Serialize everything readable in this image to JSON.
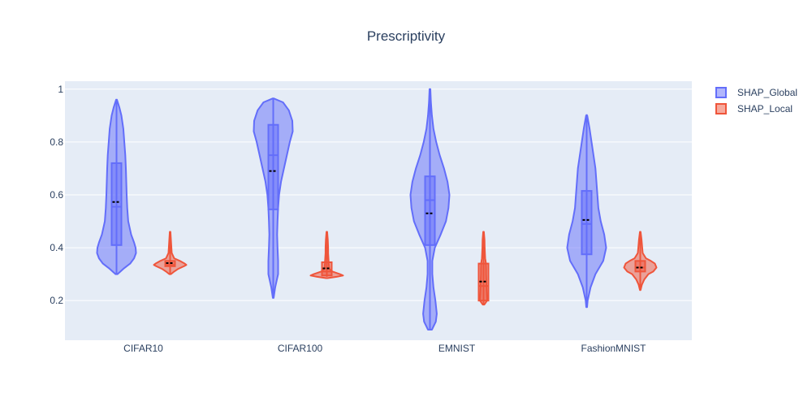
{
  "chart_data": {
    "type": "violin",
    "title": "Prescriptivity",
    "xlabel": "",
    "ylabel": "",
    "ylim": [
      0.05,
      1.03
    ],
    "yticks": [
      "0.2",
      "0.4",
      "0.6",
      "0.8",
      "1"
    ],
    "categories": [
      "CIFAR10",
      "CIFAR100",
      "EMNIST",
      "FashionMNIST"
    ],
    "legend_position": "top-right",
    "grid": true,
    "series": [
      {
        "name": "SHAP_Global",
        "color": "#636efa",
        "stats": [
          {
            "min": 0.3,
            "q1": 0.41,
            "median": 0.555,
            "q3": 0.72,
            "max": 0.96,
            "mean": 0.573
          },
          {
            "min": 0.21,
            "q1": 0.545,
            "median": 0.75,
            "q3": 0.865,
            "max": 0.965,
            "mean": 0.69
          },
          {
            "min": 0.09,
            "q1": 0.41,
            "median": 0.58,
            "q3": 0.67,
            "max": 1.0,
            "mean": 0.53
          },
          {
            "min": 0.175,
            "q1": 0.375,
            "median": 0.49,
            "q3": 0.615,
            "max": 0.905,
            "mean": 0.505
          }
        ],
        "density": [
          [
            [
              0.3,
              0.05
            ],
            [
              0.32,
              0.35
            ],
            [
              0.34,
              0.7
            ],
            [
              0.36,
              0.9
            ],
            [
              0.38,
              1.0
            ],
            [
              0.4,
              0.98
            ],
            [
              0.42,
              0.9
            ],
            [
              0.45,
              0.75
            ],
            [
              0.5,
              0.6
            ],
            [
              0.55,
              0.55
            ],
            [
              0.6,
              0.52
            ],
            [
              0.65,
              0.5
            ],
            [
              0.7,
              0.48
            ],
            [
              0.75,
              0.45
            ],
            [
              0.8,
              0.4
            ],
            [
              0.85,
              0.35
            ],
            [
              0.9,
              0.25
            ],
            [
              0.93,
              0.15
            ],
            [
              0.96,
              0.02
            ]
          ],
          [
            [
              0.21,
              0.02
            ],
            [
              0.25,
              0.1
            ],
            [
              0.3,
              0.25
            ],
            [
              0.35,
              0.25
            ],
            [
              0.4,
              0.22
            ],
            [
              0.45,
              0.2
            ],
            [
              0.5,
              0.22
            ],
            [
              0.55,
              0.25
            ],
            [
              0.6,
              0.3
            ],
            [
              0.65,
              0.4
            ],
            [
              0.7,
              0.55
            ],
            [
              0.75,
              0.7
            ],
            [
              0.8,
              0.85
            ],
            [
              0.84,
              1.0
            ],
            [
              0.88,
              0.98
            ],
            [
              0.92,
              0.8
            ],
            [
              0.95,
              0.5
            ],
            [
              0.965,
              0.02
            ]
          ],
          [
            [
              0.09,
              0.1
            ],
            [
              0.12,
              0.3
            ],
            [
              0.15,
              0.35
            ],
            [
              0.2,
              0.28
            ],
            [
              0.25,
              0.18
            ],
            [
              0.3,
              0.12
            ],
            [
              0.35,
              0.12
            ],
            [
              0.4,
              0.25
            ],
            [
              0.45,
              0.55
            ],
            [
              0.5,
              0.82
            ],
            [
              0.55,
              0.95
            ],
            [
              0.6,
              1.0
            ],
            [
              0.65,
              0.9
            ],
            [
              0.7,
              0.72
            ],
            [
              0.75,
              0.5
            ],
            [
              0.8,
              0.32
            ],
            [
              0.85,
              0.18
            ],
            [
              0.9,
              0.1
            ],
            [
              0.95,
              0.05
            ],
            [
              1.0,
              0.02
            ]
          ],
          [
            [
              0.175,
              0.02
            ],
            [
              0.2,
              0.05
            ],
            [
              0.25,
              0.2
            ],
            [
              0.3,
              0.45
            ],
            [
              0.35,
              0.85
            ],
            [
              0.4,
              1.0
            ],
            [
              0.45,
              0.9
            ],
            [
              0.5,
              0.72
            ],
            [
              0.55,
              0.6
            ],
            [
              0.6,
              0.55
            ],
            [
              0.65,
              0.5
            ],
            [
              0.7,
              0.45
            ],
            [
              0.75,
              0.35
            ],
            [
              0.8,
              0.25
            ],
            [
              0.85,
              0.15
            ],
            [
              0.9,
              0.03
            ]
          ]
        ]
      },
      {
        "name": "SHAP_Local",
        "color": "#ef553b",
        "stats": [
          {
            "min": 0.3,
            "q1": 0.33,
            "median": 0.335,
            "q3": 0.35,
            "max": 0.46,
            "mean": 0.342
          },
          {
            "min": 0.29,
            "q1": 0.295,
            "median": 0.31,
            "q3": 0.345,
            "max": 0.46,
            "mean": 0.322
          },
          {
            "min": 0.185,
            "q1": 0.2,
            "median": 0.255,
            "q3": 0.34,
            "max": 0.46,
            "mean": 0.272
          },
          {
            "min": 0.24,
            "q1": 0.31,
            "median": 0.325,
            "q3": 0.35,
            "max": 0.46,
            "mean": 0.325
          }
        ],
        "density": [
          [
            [
              0.3,
              0.05
            ],
            [
              0.31,
              0.25
            ],
            [
              0.32,
              0.5
            ],
            [
              0.33,
              0.85
            ],
            [
              0.335,
              1.0
            ],
            [
              0.34,
              0.9
            ],
            [
              0.35,
              0.6
            ],
            [
              0.36,
              0.25
            ],
            [
              0.38,
              0.1
            ],
            [
              0.4,
              0.08
            ],
            [
              0.43,
              0.05
            ],
            [
              0.46,
              0.02
            ]
          ],
          [
            [
              0.285,
              0.05
            ],
            [
              0.29,
              0.6
            ],
            [
              0.295,
              1.0
            ],
            [
              0.3,
              0.8
            ],
            [
              0.31,
              0.35
            ],
            [
              0.32,
              0.15
            ],
            [
              0.34,
              0.12
            ],
            [
              0.36,
              0.1
            ],
            [
              0.38,
              0.08
            ],
            [
              0.4,
              0.08
            ],
            [
              0.43,
              0.06
            ],
            [
              0.46,
              0.02
            ]
          ],
          [
            [
              0.185,
              0.05
            ],
            [
              0.2,
              0.22
            ],
            [
              0.22,
              0.2
            ],
            [
              0.25,
              0.18
            ],
            [
              0.28,
              0.17
            ],
            [
              0.3,
              0.16
            ],
            [
              0.32,
              0.16
            ],
            [
              0.34,
              0.15
            ],
            [
              0.36,
              0.1
            ],
            [
              0.4,
              0.07
            ],
            [
              0.43,
              0.06
            ],
            [
              0.46,
              0.02
            ]
          ],
          [
            [
              0.24,
              0.02
            ],
            [
              0.26,
              0.1
            ],
            [
              0.28,
              0.25
            ],
            [
              0.3,
              0.5
            ],
            [
              0.31,
              0.8
            ],
            [
              0.325,
              1.0
            ],
            [
              0.34,
              0.9
            ],
            [
              0.35,
              0.65
            ],
            [
              0.36,
              0.35
            ],
            [
              0.38,
              0.15
            ],
            [
              0.4,
              0.12
            ],
            [
              0.43,
              0.08
            ],
            [
              0.46,
              0.02
            ]
          ]
        ]
      }
    ]
  }
}
